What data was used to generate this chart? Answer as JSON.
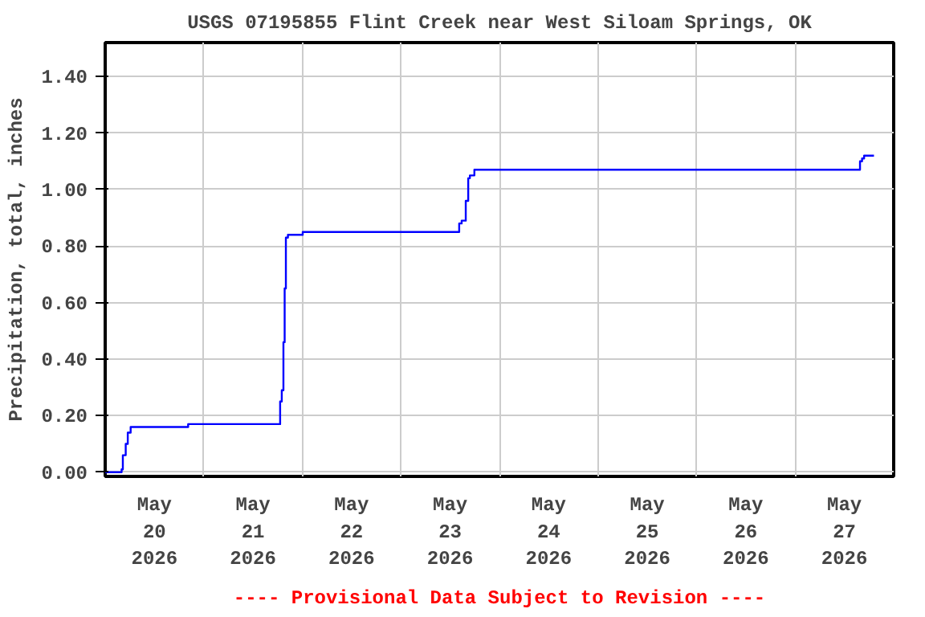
{
  "chart_data": {
    "type": "step",
    "title": "USGS 07195855 Flint Creek near West Siloam Springs, OK",
    "ylabel": "Precipitation, total, inches",
    "annotations": [
      "---- Provisional Data Subject to Revision ----"
    ],
    "x": [
      "2026-05-20T00:00",
      "2026-05-20T03:54",
      "2026-05-20T04:00",
      "2026-05-20T04:18",
      "2026-05-20T05:00",
      "2026-05-20T05:30",
      "2026-05-20T06:12",
      "2026-05-20T20:06",
      "2026-05-20T20:12",
      "2026-05-21T18:12",
      "2026-05-21T18:36",
      "2026-05-21T19:00",
      "2026-05-21T19:24",
      "2026-05-21T19:42",
      "2026-05-21T20:00",
      "2026-05-21T20:30",
      "2026-05-22T00:00",
      "2026-05-22T00:06",
      "2026-05-23T13:48",
      "2026-05-23T14:12",
      "2026-05-23T14:48",
      "2026-05-23T15:48",
      "2026-05-23T16:24",
      "2026-05-23T16:48",
      "2026-05-23T17:54",
      "2026-05-27T15:36",
      "2026-05-27T15:48",
      "2026-05-27T16:18",
      "2026-05-27T16:48",
      "2026-05-27T19:12"
    ],
    "series": [
      {
        "color": "#0000ff",
        "values": [
          0.0,
          0.0,
          0.01,
          0.06,
          0.1,
          0.14,
          0.16,
          0.16,
          0.17,
          0.17,
          0.25,
          0.29,
          0.46,
          0.65,
          0.83,
          0.84,
          0.84,
          0.85,
          0.85,
          0.88,
          0.89,
          0.96,
          1.04,
          1.05,
          1.07,
          1.07,
          1.1,
          1.11,
          1.12,
          1.12
        ]
      }
    ],
    "xlim": [
      "2026-05-20T00:00",
      "2026-05-28T00:00"
    ],
    "xticks": [
      {
        "value": "2026-05-20T12:00",
        "label": "May\n20\n2026"
      },
      {
        "value": "2026-05-21T00:00",
        "label": null
      },
      {
        "value": "2026-05-21T12:00",
        "label": "May\n21\n2026"
      },
      {
        "value": "2026-05-22T00:00",
        "label": null
      },
      {
        "value": "2026-05-22T12:00",
        "label": "May\n22\n2026"
      },
      {
        "value": "2026-05-23T00:00",
        "label": null
      },
      {
        "value": "2026-05-23T12:00",
        "label": "May\n23\n2026"
      },
      {
        "value": "2026-05-24T00:00",
        "label": null
      },
      {
        "value": "2026-05-24T12:00",
        "label": "May\n24\n2026"
      },
      {
        "value": "2026-05-25T00:00",
        "label": null
      },
      {
        "value": "2026-05-25T12:00",
        "label": "May\n25\n2026"
      },
      {
        "value": "2026-05-26T00:00",
        "label": null
      },
      {
        "value": "2026-05-26T12:00",
        "label": "May\n26\n2026"
      },
      {
        "value": "2026-05-27T00:00",
        "label": null
      },
      {
        "value": "2026-05-27T12:00",
        "label": "May\n27\n2026"
      }
    ],
    "ylim": [
      -0.015,
      1.52
    ],
    "yticks": [
      {
        "value": 0,
        "label": "0.00"
      },
      {
        "value": 0.2,
        "label": "0.20"
      },
      {
        "value": 0.4,
        "label": "0.40"
      },
      {
        "value": 0.6,
        "label": "0.60"
      },
      {
        "value": 0.8,
        "label": "0.80"
      },
      {
        "value": 1.0,
        "label": "1.00"
      },
      {
        "value": 1.2,
        "label": "1.20"
      },
      {
        "value": 1.4,
        "label": "1.40"
      }
    ],
    "grid": true,
    "line_style": "solid",
    "marker": "none"
  }
}
